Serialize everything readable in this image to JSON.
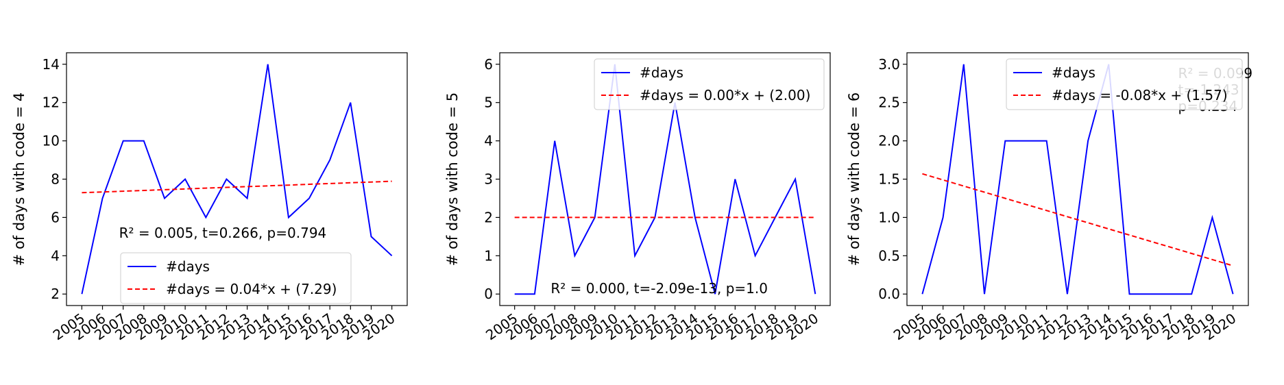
{
  "chart_data": [
    {
      "type": "line",
      "categories": [
        "2005",
        "2006",
        "2007",
        "2008",
        "2009",
        "2010",
        "2011",
        "2012",
        "2013",
        "2014",
        "2015",
        "2016",
        "2017",
        "2018",
        "2019",
        "2020"
      ],
      "series": [
        {
          "name": "#days",
          "values": [
            2,
            7,
            10,
            10,
            7,
            8,
            6,
            8,
            7,
            14,
            6,
            7,
            9,
            12,
            5,
            4
          ],
          "color": "#0000ff",
          "style": "solid"
        },
        {
          "name": "#days = 0.04*x + (7.29)",
          "values": [
            7.29,
            7.33,
            7.37,
            7.41,
            7.45,
            7.49,
            7.53,
            7.57,
            7.61,
            7.65,
            7.69,
            7.73,
            7.77,
            7.81,
            7.85,
            7.89
          ],
          "color": "#ff0000",
          "style": "dashed"
        }
      ],
      "ylabel": "# of days with code = 4",
      "xlabel": "",
      "ylim": [
        1.4,
        14.6
      ],
      "yticks": [
        "2",
        "4",
        "6",
        "8",
        "10",
        "12",
        "14"
      ],
      "ytick_values": [
        2,
        4,
        6,
        8,
        10,
        12,
        14
      ],
      "stats_lines": [
        "R² = 0.005, t=0.266, p=0.794"
      ],
      "stats_anchor": {
        "x": 1.8,
        "y": 4.95
      },
      "legend": "lower-center"
    },
    {
      "type": "line",
      "categories": [
        "2005",
        "2006",
        "2007",
        "2008",
        "2009",
        "2010",
        "2011",
        "2012",
        "2013",
        "2014",
        "2015",
        "2016",
        "2017",
        "2018",
        "2019",
        "2020"
      ],
      "series": [
        {
          "name": "#days",
          "values": [
            0,
            0,
            4,
            1,
            2,
            6,
            1,
            2,
            5,
            2,
            0,
            3,
            1,
            2,
            3,
            0
          ],
          "color": "#0000ff",
          "style": "solid"
        },
        {
          "name": "#days = 0.00*x + (2.00)",
          "values": [
            2,
            2,
            2,
            2,
            2,
            2,
            2,
            2,
            2,
            2,
            2,
            2,
            2,
            2,
            2,
            2
          ],
          "color": "#ff0000",
          "style": "dashed"
        }
      ],
      "ylabel": "# of days with code = 5",
      "xlabel": "",
      "ylim": [
        -0.3,
        6.3
      ],
      "yticks": [
        "0",
        "1",
        "2",
        "3",
        "4",
        "5",
        "6"
      ],
      "ytick_values": [
        0,
        1,
        2,
        3,
        4,
        5,
        6
      ],
      "stats_lines": [
        "R² = 0.000, t=-2.09e-13, p=1.0"
      ],
      "stats_anchor": {
        "x": 1.8,
        "y": 0.02
      },
      "legend": "upper-right"
    },
    {
      "type": "line",
      "categories": [
        "2005",
        "2006",
        "2007",
        "2008",
        "2009",
        "2010",
        "2011",
        "2012",
        "2013",
        "2014",
        "2015",
        "2016",
        "2017",
        "2018",
        "2019",
        "2020"
      ],
      "series": [
        {
          "name": "#days",
          "values": [
            0,
            1,
            3,
            0,
            2,
            2,
            2,
            0,
            2,
            3,
            0,
            0,
            0,
            0,
            1,
            0
          ],
          "color": "#0000ff",
          "style": "solid"
        },
        {
          "name": "#days = -0.08*x + (1.57)",
          "values": [
            1.57,
            1.49,
            1.41,
            1.33,
            1.25,
            1.17,
            1.09,
            1.01,
            0.93,
            0.85,
            0.77,
            0.69,
            0.61,
            0.53,
            0.45,
            0.37
          ],
          "color": "#ff0000",
          "style": "dashed"
        }
      ],
      "ylabel": "# of days with code = 6",
      "xlabel": "",
      "ylim": [
        -0.15,
        3.15
      ],
      "yticks": [
        "0.0",
        "0.5",
        "1.0",
        "1.5",
        "2.0",
        "2.5",
        "3.0"
      ],
      "ytick_values": [
        0,
        0.5,
        1.0,
        1.5,
        2.0,
        2.5,
        3.0
      ],
      "stats_lines": [
        "R² = 0.099",
        "t=-1.243",
        "p=0.234"
      ],
      "stats_anchor": {
        "x": 12.35,
        "y": 2.82
      },
      "legend": "upper-right"
    }
  ]
}
